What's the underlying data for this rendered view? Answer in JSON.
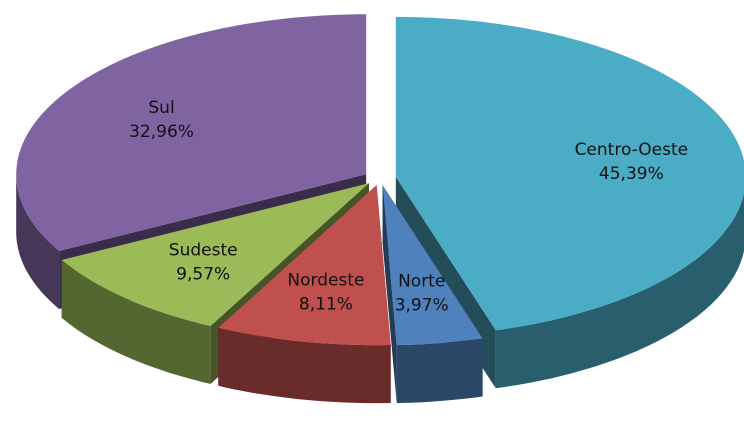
{
  "chart_data": {
    "type": "pie3d",
    "categories": [
      "Centro-Oeste",
      "Norte",
      "Nordeste",
      "Sudeste",
      "Sul"
    ],
    "values": [
      45.39,
      3.97,
      8.11,
      9.57,
      32.96
    ],
    "value_labels": [
      "45,39%",
      "3,97%",
      "8,11%",
      "9,57%",
      "32,96%"
    ],
    "colors": [
      "#4bacc6",
      "#4f81bd",
      "#c0504d",
      "#9bbb59",
      "#8064a2"
    ]
  }
}
